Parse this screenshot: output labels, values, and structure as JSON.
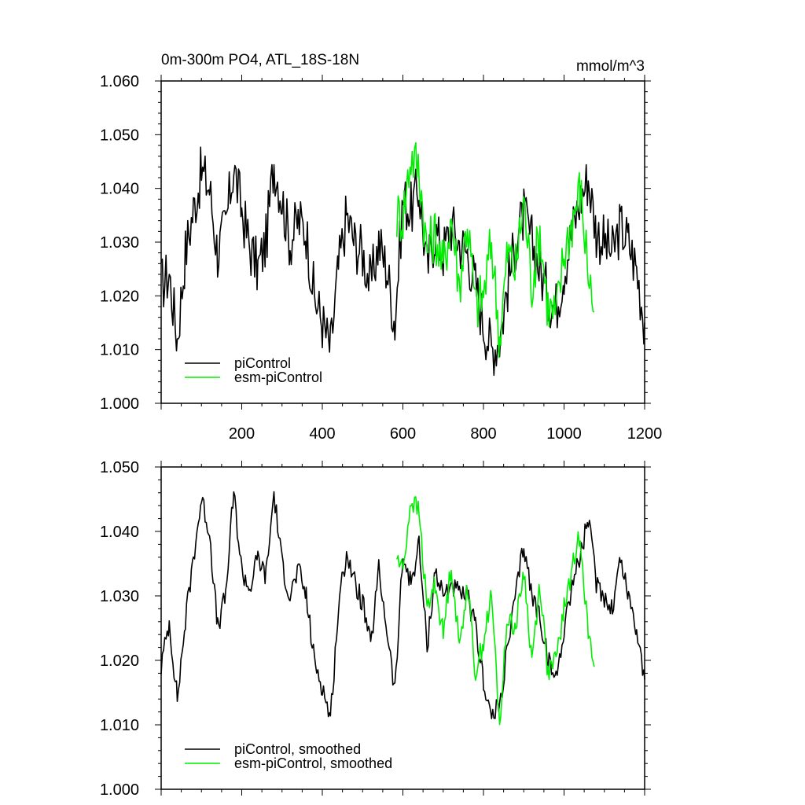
{
  "chart_data": [
    {
      "type": "line",
      "title": "0m-300m PO4, ATL_18S-18N",
      "units": "mmol/m^3",
      "xlim": [
        0,
        1200
      ],
      "ylim": [
        1.0,
        1.06
      ],
      "xticks": [
        200,
        400,
        600,
        800,
        1000,
        1200
      ],
      "xtick_labels": [
        "200",
        "400",
        "600",
        "800",
        "1000",
        "1200"
      ],
      "yticks": [
        1.0,
        1.01,
        1.02,
        1.03,
        1.04,
        1.05,
        1.06
      ],
      "ytick_labels": [
        "1.000",
        "1.010",
        "1.020",
        "1.030",
        "1.040",
        "1.050",
        "1.060"
      ],
      "legend_position": "bottom-left",
      "series": [
        {
          "name": "piControl",
          "color": "#000000",
          "x": [
            0,
            20,
            40,
            60,
            80,
            100,
            120,
            140,
            160,
            180,
            200,
            220,
            240,
            260,
            280,
            300,
            320,
            340,
            360,
            380,
            400,
            420,
            440,
            460,
            480,
            500,
            520,
            540,
            560,
            580,
            600,
            620,
            640,
            660,
            680,
            700,
            720,
            740,
            760,
            780,
            800,
            820,
            840,
            860,
            880,
            900,
            920,
            940,
            960,
            980,
            1000,
            1020,
            1040,
            1060,
            1080,
            1100,
            1120,
            1140,
            1160,
            1180,
            1200
          ],
          "values": [
            1.022,
            1.024,
            1.012,
            1.028,
            1.036,
            1.043,
            1.04,
            1.028,
            1.033,
            1.044,
            1.036,
            1.029,
            1.025,
            1.03,
            1.045,
            1.038,
            1.03,
            1.034,
            1.032,
            1.02,
            1.015,
            1.01,
            1.025,
            1.035,
            1.03,
            1.028,
            1.022,
            1.03,
            1.025,
            1.015,
            1.038,
            1.036,
            1.04,
            1.025,
            1.032,
            1.028,
            1.033,
            1.03,
            1.028,
            1.022,
            1.015,
            1.01,
            1.012,
            1.022,
            1.03,
            1.035,
            1.03,
            1.025,
            1.02,
            1.018,
            1.025,
            1.032,
            1.038,
            1.042,
            1.032,
            1.03,
            1.028,
            1.033,
            1.03,
            1.025,
            1.015
          ]
        },
        {
          "name": "esm-piControl",
          "color": "#00ee00",
          "x": [
            585,
            600,
            620,
            640,
            660,
            680,
            700,
            720,
            740,
            760,
            780,
            800,
            820,
            840,
            860,
            880,
            900,
            920,
            940,
            960,
            980,
            1000,
            1020,
            1040,
            1060,
            1075
          ],
          "values": [
            1.035,
            1.035,
            1.046,
            1.044,
            1.028,
            1.032,
            1.025,
            1.035,
            1.022,
            1.034,
            1.018,
            1.02,
            1.03,
            1.012,
            1.028,
            1.025,
            1.038,
            1.022,
            1.032,
            1.018,
            1.016,
            1.028,
            1.034,
            1.04,
            1.025,
            1.017
          ]
        }
      ]
    },
    {
      "type": "line",
      "title": "",
      "xlim": [
        0,
        1200
      ],
      "ylim": [
        1.0,
        1.05
      ],
      "yticks": [
        1.0,
        1.01,
        1.02,
        1.03,
        1.04,
        1.05
      ],
      "ytick_labels": [
        "1.000",
        "1.010",
        "1.020",
        "1.030",
        "1.040",
        "1.050"
      ],
      "legend_position": "bottom-left",
      "series": [
        {
          "name": "piControl, smoothed",
          "color": "#000000",
          "x": [
            0,
            20,
            40,
            60,
            80,
            100,
            120,
            140,
            160,
            180,
            200,
            220,
            240,
            260,
            280,
            300,
            320,
            340,
            360,
            380,
            400,
            420,
            440,
            460,
            480,
            500,
            520,
            540,
            560,
            580,
            600,
            620,
            640,
            660,
            680,
            700,
            720,
            740,
            760,
            780,
            800,
            820,
            840,
            860,
            880,
            900,
            920,
            940,
            960,
            980,
            1000,
            1020,
            1040,
            1060,
            1080,
            1100,
            1120,
            1140,
            1160,
            1180,
            1200
          ],
          "values": [
            1.019,
            1.026,
            1.014,
            1.026,
            1.036,
            1.045,
            1.04,
            1.025,
            1.03,
            1.046,
            1.034,
            1.031,
            1.036,
            1.033,
            1.046,
            1.035,
            1.03,
            1.034,
            1.03,
            1.02,
            1.016,
            1.011,
            1.028,
            1.037,
            1.032,
            1.029,
            1.022,
            1.034,
            1.025,
            1.015,
            1.036,
            1.032,
            1.038,
            1.022,
            1.034,
            1.03,
            1.032,
            1.03,
            1.03,
            1.025,
            1.017,
            1.011,
            1.013,
            1.022,
            1.03,
            1.038,
            1.03,
            1.027,
            1.02,
            1.017,
            1.025,
            1.032,
            1.036,
            1.042,
            1.032,
            1.03,
            1.028,
            1.036,
            1.03,
            1.025,
            1.017
          ]
        },
        {
          "name": "esm-piControl, smoothed",
          "color": "#00ee00",
          "x": [
            585,
            600,
            620,
            640,
            660,
            680,
            700,
            720,
            740,
            760,
            780,
            800,
            820,
            840,
            860,
            880,
            900,
            920,
            940,
            960,
            980,
            1000,
            1020,
            1040,
            1060,
            1075
          ],
          "values": [
            1.036,
            1.034,
            1.045,
            1.043,
            1.028,
            1.032,
            1.024,
            1.035,
            1.022,
            1.032,
            1.018,
            1.023,
            1.03,
            1.01,
            1.027,
            1.025,
            1.034,
            1.02,
            1.032,
            1.018,
            1.02,
            1.028,
            1.034,
            1.04,
            1.024,
            1.019
          ]
        }
      ]
    }
  ]
}
